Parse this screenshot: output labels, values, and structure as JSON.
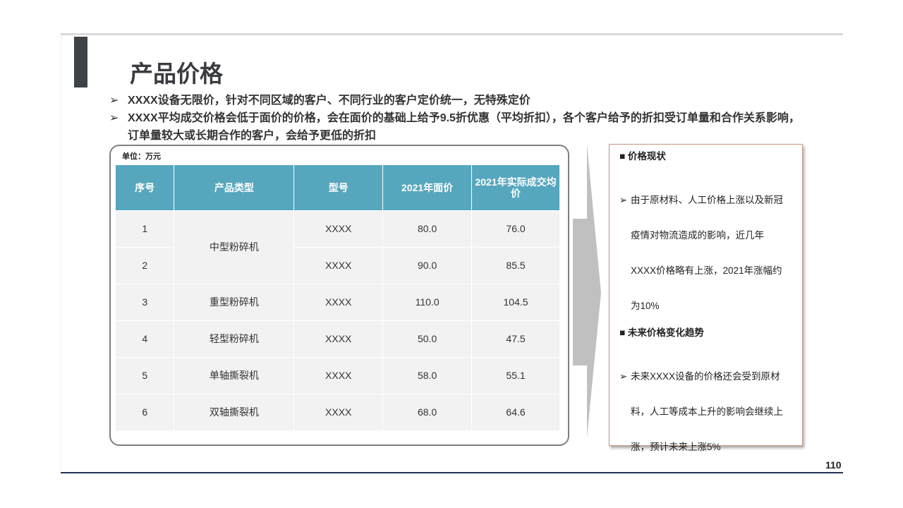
{
  "title": "产品价格",
  "bullets": [
    "XXXX设备无限价，针对不同区域的客户、不同行业的客户定价统一，无特殊定价",
    "XXXX平均成交价格会低于面价的价格，会在面价的基础上给予9.5折优惠（平均折扣），各个客户给予的折扣受订单量和合作关系影响，订单量较大或长期合作的客户，会给予更低的折扣"
  ],
  "table": {
    "unit": "单位：万元",
    "headers": [
      "序号",
      "产品类型",
      "型号",
      "2021年面价",
      "2021年实际成交均价"
    ],
    "rows": [
      {
        "no": "1",
        "type": "中型粉碎机",
        "model": "XXXX",
        "list": "80.0",
        "actual": "76.0"
      },
      {
        "no": "2",
        "type": "",
        "model": "XXXX",
        "list": "90.0",
        "actual": "85.5"
      },
      {
        "no": "3",
        "type": "重型粉碎机",
        "model": "XXXX",
        "list": "110.0",
        "actual": "104.5"
      },
      {
        "no": "4",
        "type": "轻型粉碎机",
        "model": "XXXX",
        "list": "50.0",
        "actual": "47.5"
      },
      {
        "no": "5",
        "type": "单轴撕裂机",
        "model": "XXXX",
        "list": "58.0",
        "actual": "55.1"
      },
      {
        "no": "6",
        "type": "双轴撕裂机",
        "model": "XXXX",
        "list": "68.0",
        "actual": "64.6"
      }
    ]
  },
  "side": {
    "h1": "■ 价格现状",
    "p1": [
      "由于原材料、人工价格上涨以及新冠",
      "疫情对物流造成的影响，近几年",
      "XXXX价格略有上涨，2021年涨幅约",
      "为10%"
    ],
    "h2": "■ 未来价格变化趋势",
    "p2": [
      "未来XXXX设备的价格还会受到原材",
      "料，人工等成本上升的影响会继续上",
      "涨，预计未来上涨5%"
    ]
  },
  "page_number": "110",
  "colors": {
    "header": "#56a7bd",
    "title_bar": "#3f4247",
    "arrow": "#c0c0c0"
  }
}
